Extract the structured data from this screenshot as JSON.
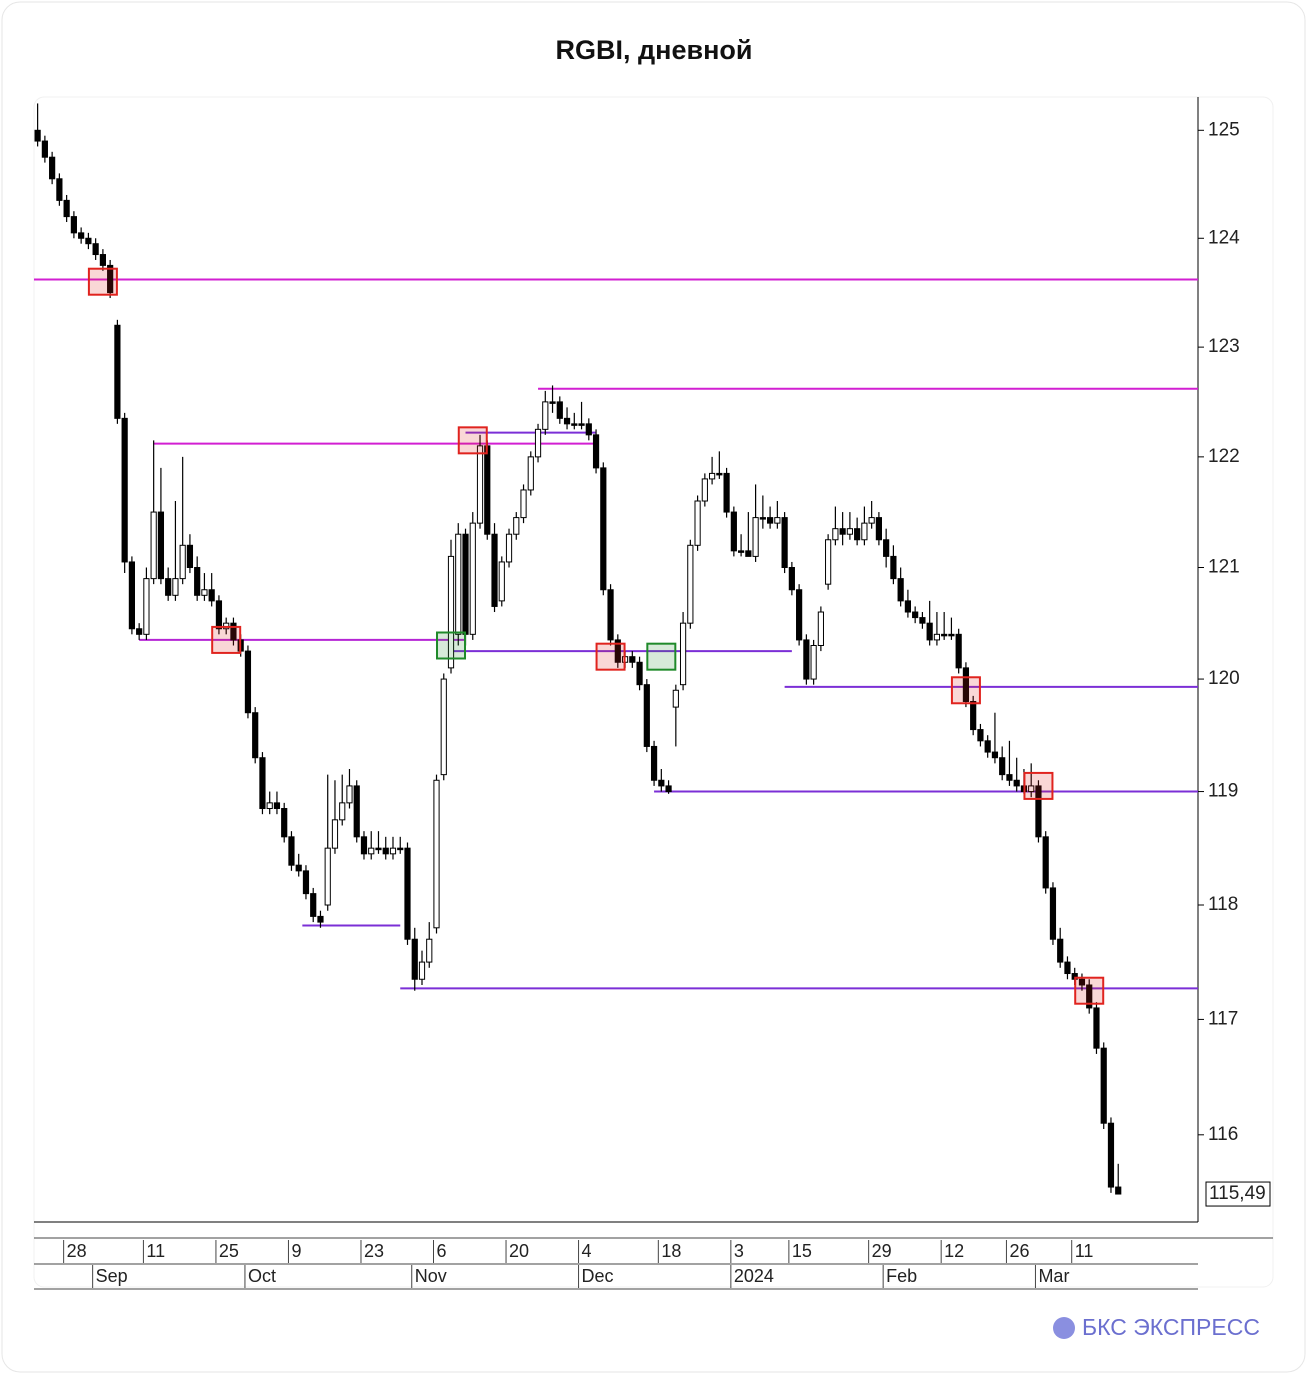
{
  "chart_data": {
    "type": "candlestick",
    "title": "RGBI, дневной",
    "log_scale": true,
    "ylim": [
      115.25,
      125.31
    ],
    "yticks": [
      116,
      117,
      118,
      119,
      120,
      121,
      122,
      123,
      124,
      125
    ],
    "xlim": [
      -0.5,
      160
    ],
    "xticks": [
      {
        "value": 4,
        "label": "28"
      },
      {
        "value": 15,
        "label": "11"
      },
      {
        "value": 25,
        "label": "25"
      },
      {
        "value": 35,
        "label": "9"
      },
      {
        "value": 45,
        "label": "23"
      },
      {
        "value": 55,
        "label": "6"
      },
      {
        "value": 65,
        "label": "20"
      },
      {
        "value": 75,
        "label": "4"
      },
      {
        "value": 86,
        "label": "18"
      },
      {
        "value": 96,
        "label": "3"
      },
      {
        "value": 104,
        "label": "15"
      },
      {
        "value": 115,
        "label": "29"
      },
      {
        "value": 125,
        "label": "12"
      },
      {
        "value": 134,
        "label": "26"
      },
      {
        "value": 143,
        "label": "11"
      }
    ],
    "month_ticks": [
      {
        "value": 8,
        "label": "Sep"
      },
      {
        "value": 29,
        "label": "Oct"
      },
      {
        "value": 52,
        "label": "Nov"
      },
      {
        "value": 75,
        "label": "Dec"
      },
      {
        "value": 96,
        "label": "2024"
      },
      {
        "value": 117,
        "label": "Feb"
      },
      {
        "value": 138,
        "label": "Mar"
      }
    ],
    "colors": {
      "up": "#ffffff",
      "down": "#000000"
    },
    "candles": [
      [
        125.0,
        125.25,
        124.85,
        124.9
      ],
      [
        124.9,
        124.95,
        124.7,
        124.75
      ],
      [
        124.75,
        124.8,
        124.5,
        124.55
      ],
      [
        124.55,
        124.6,
        124.3,
        124.35
      ],
      [
        124.35,
        124.4,
        124.15,
        124.2
      ],
      [
        124.2,
        124.25,
        124.0,
        124.05
      ],
      [
        124.05,
        124.1,
        123.95,
        124.0
      ],
      [
        124.0,
        124.05,
        123.9,
        123.95
      ],
      [
        123.95,
        124.0,
        123.8,
        123.85
      ],
      [
        123.85,
        123.9,
        123.7,
        123.75
      ],
      [
        123.75,
        123.8,
        123.45,
        123.5
      ],
      [
        123.2,
        123.25,
        122.3,
        122.35
      ],
      [
        122.35,
        122.4,
        120.95,
        121.05
      ],
      [
        121.05,
        121.1,
        120.4,
        120.45
      ],
      [
        120.45,
        120.5,
        120.35,
        120.4
      ],
      [
        120.4,
        121.0,
        120.35,
        120.9
      ],
      [
        120.9,
        122.15,
        120.85,
        121.5
      ],
      [
        121.5,
        121.9,
        120.85,
        120.9
      ],
      [
        120.9,
        121.0,
        120.7,
        120.75
      ],
      [
        120.75,
        121.6,
        120.7,
        120.9
      ],
      [
        120.9,
        122.0,
        120.85,
        121.2
      ],
      [
        121.2,
        121.3,
        120.95,
        121.0
      ],
      [
        121.0,
        121.1,
        120.7,
        120.75
      ],
      [
        120.75,
        120.95,
        120.7,
        120.8
      ],
      [
        120.8,
        120.95,
        120.65,
        120.7
      ],
      [
        120.7,
        120.75,
        120.4,
        120.45
      ],
      [
        120.45,
        120.55,
        120.4,
        120.5
      ],
      [
        120.5,
        120.55,
        120.3,
        120.35
      ],
      [
        120.35,
        120.4,
        120.2,
        120.25
      ],
      [
        120.25,
        120.3,
        119.65,
        119.7
      ],
      [
        119.7,
        119.75,
        119.25,
        119.3
      ],
      [
        119.3,
        119.35,
        118.8,
        118.85
      ],
      [
        118.85,
        119.0,
        118.8,
        118.9
      ],
      [
        118.9,
        119.0,
        118.8,
        118.85
      ],
      [
        118.85,
        118.9,
        118.55,
        118.6
      ],
      [
        118.6,
        118.65,
        118.3,
        118.35
      ],
      [
        118.35,
        118.45,
        118.25,
        118.3
      ],
      [
        118.3,
        118.35,
        118.05,
        118.1
      ],
      [
        118.1,
        118.15,
        117.85,
        117.9
      ],
      [
        117.9,
        117.95,
        117.8,
        117.85
      ],
      [
        118.0,
        119.15,
        117.95,
        118.5
      ],
      [
        118.5,
        119.1,
        118.45,
        118.75
      ],
      [
        118.75,
        119.15,
        118.7,
        118.9
      ],
      [
        118.9,
        119.2,
        118.85,
        119.05
      ],
      [
        119.05,
        119.1,
        118.55,
        118.6
      ],
      [
        118.6,
        118.65,
        118.4,
        118.45
      ],
      [
        118.45,
        118.65,
        118.4,
        118.5
      ],
      [
        118.5,
        118.65,
        118.45,
        118.5
      ],
      [
        118.5,
        118.6,
        118.4,
        118.45
      ],
      [
        118.45,
        118.6,
        118.4,
        118.5
      ],
      [
        118.5,
        118.6,
        118.45,
        118.5
      ],
      [
        118.5,
        118.55,
        117.65,
        117.7
      ],
      [
        117.7,
        117.8,
        117.25,
        117.35
      ],
      [
        117.35,
        117.6,
        117.3,
        117.5
      ],
      [
        117.5,
        117.85,
        117.45,
        117.7
      ],
      [
        117.8,
        119.15,
        117.75,
        119.1
      ],
      [
        119.15,
        120.05,
        119.1,
        120.0
      ],
      [
        120.1,
        121.25,
        120.05,
        121.1
      ],
      [
        120.4,
        121.4,
        120.3,
        121.3
      ],
      [
        121.3,
        121.35,
        120.3,
        120.4
      ],
      [
        120.4,
        121.5,
        120.35,
        121.4
      ],
      [
        121.4,
        122.2,
        121.35,
        122.1
      ],
      [
        122.1,
        122.15,
        121.25,
        121.3
      ],
      [
        121.3,
        121.4,
        120.6,
        120.65
      ],
      [
        120.7,
        121.1,
        120.65,
        121.05
      ],
      [
        121.05,
        121.35,
        121.0,
        121.3
      ],
      [
        121.3,
        121.5,
        121.25,
        121.45
      ],
      [
        121.45,
        121.75,
        121.4,
        121.7
      ],
      [
        121.7,
        122.05,
        121.65,
        122.0
      ],
      [
        122.0,
        122.3,
        121.95,
        122.25
      ],
      [
        122.25,
        122.6,
        122.2,
        122.5
      ],
      [
        122.5,
        122.65,
        122.4,
        122.5
      ],
      [
        122.5,
        122.55,
        122.3,
        122.35
      ],
      [
        122.35,
        122.45,
        122.25,
        122.3
      ],
      [
        122.3,
        122.4,
        122.25,
        122.3
      ],
      [
        122.3,
        122.5,
        122.25,
        122.3
      ],
      [
        122.3,
        122.35,
        122.15,
        122.2
      ],
      [
        122.2,
        122.25,
        121.85,
        121.9
      ],
      [
        121.9,
        121.95,
        120.75,
        120.8
      ],
      [
        120.8,
        120.85,
        120.3,
        120.35
      ],
      [
        120.35,
        120.4,
        120.1,
        120.15
      ],
      [
        120.15,
        120.25,
        120.1,
        120.2
      ],
      [
        120.2,
        120.25,
        120.1,
        120.15
      ],
      [
        120.15,
        120.2,
        119.9,
        119.95
      ],
      [
        119.95,
        120.0,
        119.35,
        119.4
      ],
      [
        119.4,
        119.45,
        119.05,
        119.1
      ],
      [
        119.1,
        119.2,
        119.0,
        119.05
      ],
      [
        119.05,
        119.1,
        118.98,
        119.0
      ],
      [
        119.75,
        119.95,
        119.4,
        119.9
      ],
      [
        119.95,
        120.6,
        119.9,
        120.5
      ],
      [
        120.5,
        121.25,
        120.45,
        121.2
      ],
      [
        121.2,
        121.65,
        121.15,
        121.6
      ],
      [
        121.6,
        121.85,
        121.55,
        121.8
      ],
      [
        121.8,
        122.0,
        121.75,
        121.85
      ],
      [
        121.85,
        122.05,
        121.8,
        121.85
      ],
      [
        121.85,
        121.9,
        121.45,
        121.5
      ],
      [
        121.5,
        121.55,
        121.1,
        121.15
      ],
      [
        121.15,
        121.3,
        121.1,
        121.15
      ],
      [
        121.15,
        121.5,
        121.1,
        121.1
      ],
      [
        121.1,
        121.75,
        121.05,
        121.45
      ],
      [
        121.45,
        121.65,
        121.35,
        121.45
      ],
      [
        121.45,
        121.55,
        121.35,
        121.4
      ],
      [
        121.4,
        121.6,
        121.35,
        121.45
      ],
      [
        121.45,
        121.5,
        120.95,
        121.0
      ],
      [
        121.0,
        121.05,
        120.75,
        120.8
      ],
      [
        120.8,
        120.85,
        120.3,
        120.35
      ],
      [
        120.35,
        120.4,
        119.95,
        120.0
      ],
      [
        120.0,
        120.35,
        119.95,
        120.3
      ],
      [
        120.3,
        120.65,
        120.25,
        120.6
      ],
      [
        120.85,
        121.3,
        120.8,
        121.25
      ],
      [
        121.25,
        121.55,
        121.2,
        121.35
      ],
      [
        121.35,
        121.5,
        121.2,
        121.3
      ],
      [
        121.3,
        121.5,
        121.25,
        121.35
      ],
      [
        121.35,
        121.45,
        121.2,
        121.25
      ],
      [
        121.25,
        121.55,
        121.2,
        121.4
      ],
      [
        121.4,
        121.6,
        121.35,
        121.45
      ],
      [
        121.45,
        121.5,
        121.2,
        121.25
      ],
      [
        121.25,
        121.35,
        121.0,
        121.1
      ],
      [
        121.1,
        121.2,
        120.85,
        120.9
      ],
      [
        120.9,
        121.0,
        120.65,
        120.7
      ],
      [
        120.7,
        120.8,
        120.55,
        120.6
      ],
      [
        120.6,
        120.65,
        120.5,
        120.55
      ],
      [
        120.55,
        120.6,
        120.45,
        120.5
      ],
      [
        120.5,
        120.7,
        120.3,
        120.35
      ],
      [
        120.35,
        120.6,
        120.3,
        120.4
      ],
      [
        120.4,
        120.6,
        120.35,
        120.4
      ],
      [
        120.4,
        120.55,
        120.35,
        120.4
      ],
      [
        120.4,
        120.45,
        120.05,
        120.1
      ],
      [
        120.1,
        120.15,
        119.75,
        119.8
      ],
      [
        119.8,
        119.85,
        119.5,
        119.55
      ],
      [
        119.55,
        119.6,
        119.4,
        119.45
      ],
      [
        119.45,
        119.5,
        119.3,
        119.35
      ],
      [
        119.35,
        119.7,
        119.25,
        119.3
      ],
      [
        119.3,
        119.4,
        119.1,
        119.15
      ],
      [
        119.15,
        119.45,
        119.05,
        119.1
      ],
      [
        119.1,
        119.3,
        119.0,
        119.05
      ],
      [
        119.05,
        119.2,
        118.98,
        119.0
      ],
      [
        119.0,
        119.25,
        118.95,
        119.05
      ],
      [
        119.05,
        119.1,
        118.55,
        118.6
      ],
      [
        118.6,
        118.65,
        118.1,
        118.15
      ],
      [
        118.15,
        118.2,
        117.65,
        117.7
      ],
      [
        117.7,
        117.8,
        117.45,
        117.5
      ],
      [
        117.5,
        117.55,
        117.35,
        117.4
      ],
      [
        117.4,
        117.45,
        117.3,
        117.35
      ],
      [
        117.35,
        117.4,
        117.25,
        117.3
      ],
      [
        117.3,
        117.35,
        117.05,
        117.1
      ],
      [
        117.1,
        117.15,
        116.7,
        116.75
      ],
      [
        116.75,
        116.8,
        116.05,
        116.1
      ],
      [
        116.1,
        116.15,
        115.5,
        115.55
      ],
      [
        115.55,
        115.75,
        115.49,
        115.49
      ]
    ],
    "levels": [
      {
        "value": 123.62,
        "from": -0.5,
        "to": 160,
        "color": "#d21fd2"
      },
      {
        "value": 122.62,
        "from": 69,
        "to": 160,
        "color": "#d21fd2"
      },
      {
        "value": 122.12,
        "from": 16,
        "to": 77,
        "color": "#d21fd2"
      },
      {
        "value": 122.22,
        "from": 59,
        "to": 77,
        "color": "#7b2fd6"
      },
      {
        "value": 120.35,
        "from": 14,
        "to": 59,
        "color": "#b425d4"
      },
      {
        "value": 120.25,
        "from": 57,
        "to": 104,
        "color": "#7b2fd6"
      },
      {
        "value": 119.93,
        "from": 103,
        "to": 160,
        "color": "#7b2fd6"
      },
      {
        "value": 119.0,
        "from": 85,
        "to": 160,
        "color": "#7b2fd6"
      },
      {
        "value": 117.82,
        "from": 36.5,
        "to": 50,
        "color": "#7b2fd6"
      },
      {
        "value": 117.27,
        "from": 50,
        "to": 160,
        "color": "#7b2fd6"
      }
    ],
    "markers": [
      {
        "index": 9,
        "value": 123.6,
        "color": "#e0231e"
      },
      {
        "index": 26,
        "value": 120.35,
        "color": "#e0231e"
      },
      {
        "index": 60,
        "value": 122.15,
        "color": "#e0231e"
      },
      {
        "index": 79,
        "value": 120.2,
        "color": "#e0231e"
      },
      {
        "index": 128,
        "value": 119.9,
        "color": "#e0231e"
      },
      {
        "index": 138,
        "value": 119.05,
        "color": "#e0231e"
      },
      {
        "index": 145,
        "value": 117.25,
        "color": "#e0231e"
      },
      {
        "index": 57,
        "value": 120.3,
        "color": "#1f8a2a"
      },
      {
        "index": 86,
        "value": 120.2,
        "color": "#1f8a2a"
      }
    ],
    "last_price": {
      "value": 115.49,
      "label": "115,49"
    }
  },
  "logo": "БКС ЭКСПРЕСС"
}
